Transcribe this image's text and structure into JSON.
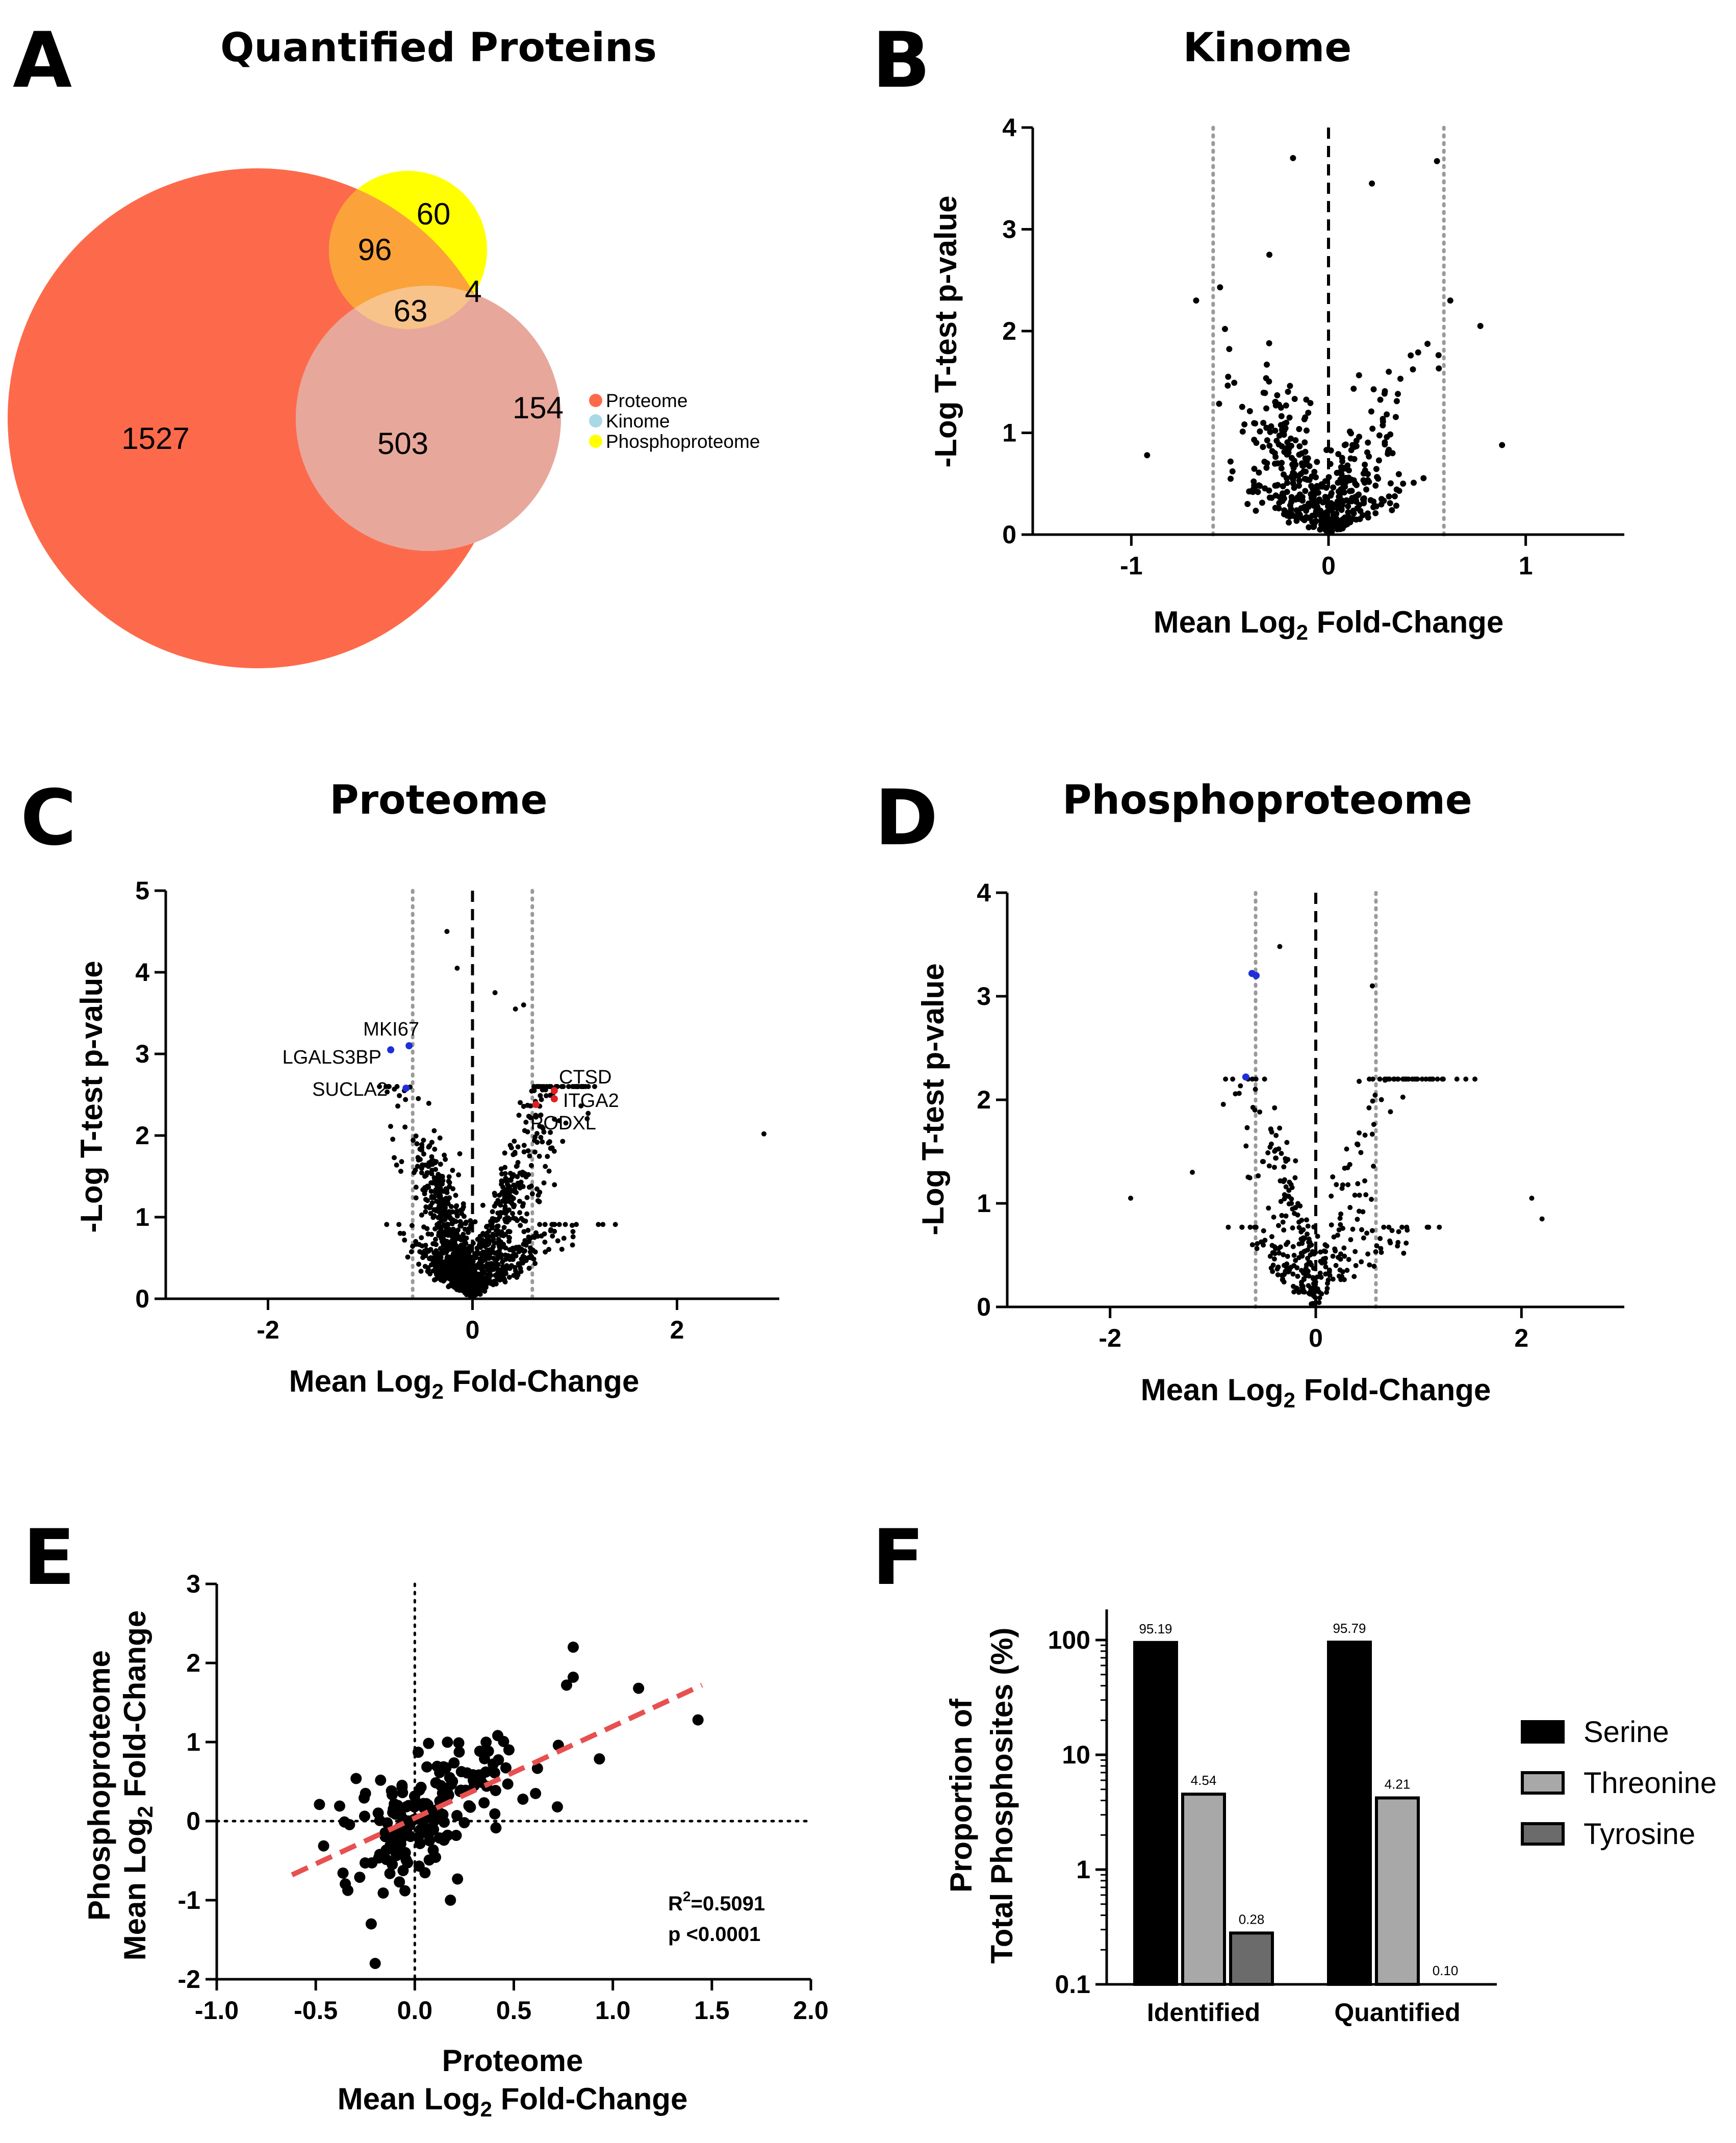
{
  "figure": {
    "panels": {
      "A": {
        "letter": "A",
        "title": "Quantified Proteins"
      },
      "B": {
        "letter": "B",
        "title": "Kinome"
      },
      "C": {
        "letter": "C",
        "title": "Proteome"
      },
      "D": {
        "letter": "D",
        "title": "Phosphoproteome"
      },
      "E": {
        "letter": "E"
      },
      "F": {
        "letter": "F"
      }
    },
    "colors": {
      "proteome": "#fd6a4b",
      "kinome": "#a9d8e6",
      "phospho": "#ffff00",
      "down": "#1f2fd8",
      "up": "#e02020",
      "fit": "#e85050"
    }
  },
  "chart_data": [
    {
      "panel": "A",
      "type": "venn",
      "title": "Quantified Proteins",
      "sets": [
        "Proteome",
        "Kinome",
        "Phosphoproteome"
      ],
      "regions": {
        "proteome_only": 1527,
        "proteome_kinome": 503,
        "kinome_only": 154,
        "proteome_phospho": 96,
        "phospho_only": 60,
        "all_three": 63,
        "kinome_phospho": 4
      },
      "legend": [
        "Proteome",
        "Kinome",
        "Phosphoproteome"
      ]
    },
    {
      "panel": "B",
      "type": "scatter",
      "title": "Kinome",
      "xlabel": "Mean Log",
      "xlabel_sub": "2",
      "xlabel_end": " Fold-Change",
      "ylabel": "-Log T-test p-value",
      "xlim": [
        -1.5,
        1.5
      ],
      "ylim": [
        0,
        4
      ],
      "xticks": [
        "-1",
        "0",
        "1"
      ],
      "yticks": [
        "0",
        "1",
        "2",
        "3",
        "4"
      ],
      "thresholds_x": [
        -0.585,
        0.585
      ],
      "n_points": 480,
      "notable_points": [
        [
          -0.18,
          3.7
        ],
        [
          0.55,
          3.67
        ],
        [
          0.22,
          3.45
        ],
        [
          -0.3,
          2.75
        ],
        [
          -0.55,
          2.43
        ],
        [
          0.77,
          2.05
        ],
        [
          0.88,
          0.88
        ],
        [
          -0.92,
          0.78
        ]
      ]
    },
    {
      "panel": "C",
      "type": "scatter",
      "title": "Proteome",
      "xlabel": "Mean Log",
      "xlabel_sub": "2",
      "xlabel_end": " Fold-Change",
      "ylabel": "-Log T-test p-value",
      "xlim": [
        -3,
        3
      ],
      "ylim": [
        0,
        5
      ],
      "xticks": [
        "-2",
        "0",
        "2"
      ],
      "yticks": [
        "0",
        "1",
        "2",
        "3",
        "4",
        "5"
      ],
      "thresholds_x": [
        -0.585,
        0.585
      ],
      "n_points": 1400,
      "labeled": [
        {
          "name": "MKI67",
          "x": -0.62,
          "y": 3.1,
          "dir": "down"
        },
        {
          "name": "LGALS3BP",
          "x": -0.8,
          "y": 3.05,
          "dir": "down"
        },
        {
          "name": "SUCLA2",
          "x": -0.65,
          "y": 2.58,
          "dir": "down"
        },
        {
          "name": "CTSD",
          "x": 0.8,
          "y": 2.55,
          "dir": "up"
        },
        {
          "name": "ITGA2",
          "x": 0.8,
          "y": 2.45,
          "dir": "up"
        },
        {
          "name": "PODXL",
          "x": 0.62,
          "y": 2.38,
          "dir": "up"
        }
      ]
    },
    {
      "panel": "D",
      "type": "scatter",
      "title": "Phosphoproteome",
      "xlabel": "Mean Log",
      "xlabel_sub": "2",
      "xlabel_end": " Fold-Change",
      "ylabel": "-Log T-test p-value",
      "xlim": [
        -3,
        3
      ],
      "ylim": [
        0,
        4
      ],
      "xticks": [
        "-2",
        "0",
        "2"
      ],
      "yticks": [
        "0",
        "1",
        "2",
        "3",
        "4"
      ],
      "thresholds_x": [
        -0.585,
        0.585
      ],
      "n_points": 380,
      "significant_down": [
        [
          -0.62,
          3.22
        ],
        [
          -0.58,
          3.2
        ],
        [
          -0.68,
          2.22
        ]
      ]
    },
    {
      "panel": "E",
      "type": "scatter",
      "xlabel": "Proteome",
      "xlabel2": "Mean Log",
      "xlabel2_sub": "2",
      "xlabel2_end": " Fold-Change",
      "ylabel": "Phosphoproteome",
      "ylabel2": "Mean Log",
      "ylabel2_sub": "2",
      "ylabel2_end": " Fold-Change",
      "xlim": [
        -1.0,
        2.0
      ],
      "ylim": [
        -2,
        3
      ],
      "xticks": [
        "-1.0",
        "-0.5",
        "0.0",
        "0.5",
        "1.0",
        "1.5",
        "2.0"
      ],
      "yticks": [
        "-2",
        "-1",
        "0",
        "1",
        "2",
        "3"
      ],
      "fit_line": {
        "x": [
          -0.62,
          1.45
        ],
        "y": [
          -0.68,
          1.72
        ]
      },
      "r2_label": "R",
      "r2_sup": "2",
      "r2_value": "=0.5091",
      "p_label": "p <0.0001",
      "n_points": 170,
      "notable_points": [
        [
          0.8,
          2.2
        ],
        [
          0.8,
          1.82
        ],
        [
          1.13,
          1.68
        ],
        [
          1.43,
          1.28
        ],
        [
          0.72,
          0.18
        ],
        [
          -0.2,
          -1.8
        ],
        [
          -0.22,
          -1.3
        ],
        [
          0.18,
          -1.0
        ]
      ]
    },
    {
      "panel": "F",
      "type": "bar",
      "scale": "log",
      "ylabel": "Proportion of",
      "ylabel2": "Total Phosphosites (%)",
      "ylim": [
        0.1,
        100
      ],
      "yticks": [
        "0.1",
        "1",
        "10",
        "100"
      ],
      "categories": [
        "Identified",
        "Quantified"
      ],
      "series": [
        {
          "name": "Serine",
          "values": [
            95.19,
            95.79
          ],
          "labels": [
            "95.19",
            "95.79"
          ],
          "color": "#000000"
        },
        {
          "name": "Threonine",
          "values": [
            4.54,
            4.21
          ],
          "labels": [
            "4.54",
            "4.21"
          ],
          "color": "#a8a8a8"
        },
        {
          "name": "Tyrosine",
          "values": [
            0.28,
            0.1
          ],
          "labels": [
            "0.28",
            "0.10"
          ],
          "color": "#6b6b6b"
        }
      ]
    }
  ]
}
